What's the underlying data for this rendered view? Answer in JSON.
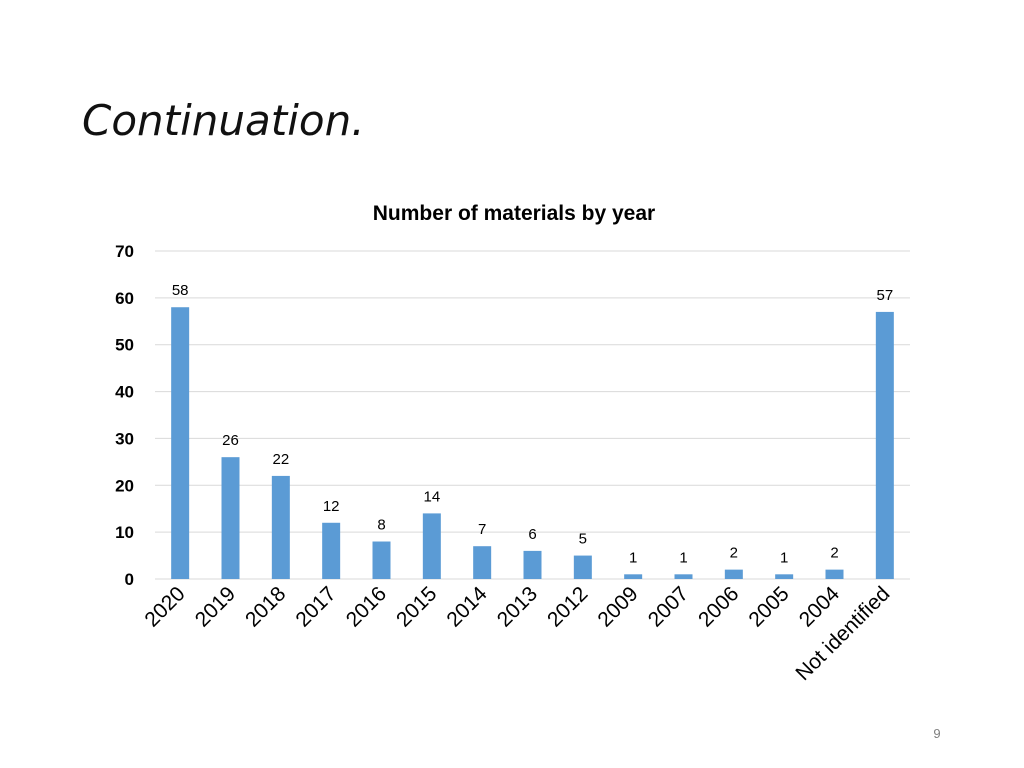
{
  "slide": {
    "title": "Continuation.",
    "page_number": "9"
  },
  "colors": {
    "bar": "#5b9bd5",
    "grid": "#d9d9d9",
    "axis": "#d9d9d9",
    "text": "#000000"
  },
  "chart_data": {
    "type": "bar",
    "title": "Number of materials by year",
    "xlabel": "",
    "ylabel": "",
    "ylim": [
      0,
      70
    ],
    "yticks": [
      0,
      10,
      20,
      30,
      40,
      50,
      60,
      70
    ],
    "grid": true,
    "categories": [
      "2020",
      "2019",
      "2018",
      "2017",
      "2016",
      "2015",
      "2014",
      "2013",
      "2012",
      "2009",
      "2007",
      "2006",
      "2005",
      "2004",
      "Not identified"
    ],
    "values": [
      58,
      26,
      22,
      12,
      8,
      14,
      7,
      6,
      5,
      1,
      1,
      2,
      1,
      2,
      57
    ]
  }
}
